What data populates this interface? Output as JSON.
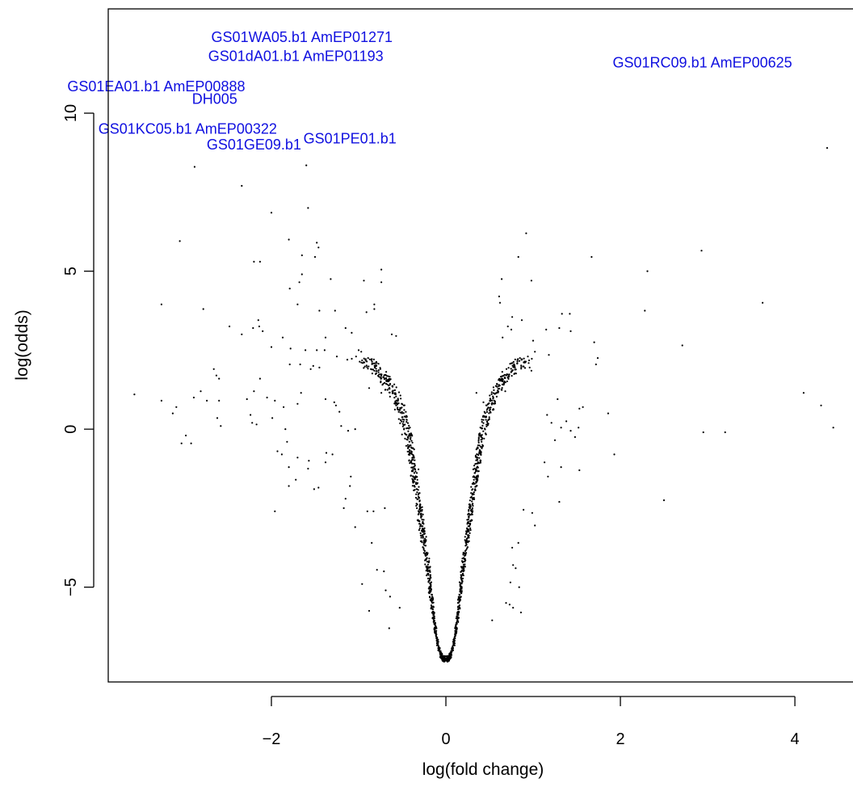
{
  "chart_data": {
    "type": "scatter",
    "title": "",
    "xlabel": "log(fold change)",
    "ylabel": "log(odds)",
    "xlim": [
      -3.87,
      4.74
    ],
    "ylim": [
      -8.0,
      13.3
    ],
    "x_ticks": [
      -2,
      0,
      2,
      4
    ],
    "y_ticks": [
      -5,
      0,
      5,
      10
    ],
    "x_tick_labels": [
      "−2",
      "0",
      "2",
      "4"
    ],
    "y_tick_labels": [
      "−5",
      "0",
      "5",
      "10"
    ],
    "grid": false,
    "point_color": "#000000",
    "label_color": "#1010e0",
    "labeled_genes": [
      {
        "label": "GS01WA05.b1 AmEP01271",
        "x": -1.65,
        "y": 12.4
      },
      {
        "label": "GS01dA01.b1 AmEP01193",
        "x": -1.72,
        "y": 11.8
      },
      {
        "label": "GS01RC09.b1 AmEP00625",
        "x": 2.94,
        "y": 11.6
      },
      {
        "label": "GS01EA01.b1 AmEP00888",
        "x": -3.32,
        "y": 10.85
      },
      {
        "label": "DH005",
        "x": -2.65,
        "y": 10.45
      },
      {
        "label": "GS01KC05.b1 AmEP00322",
        "x": -2.96,
        "y": 9.5
      },
      {
        "label": "GS01PE01.b1",
        "x": -1.1,
        "y": 9.2
      },
      {
        "label": "GS01GE09.b1",
        "x": -2.2,
        "y": 9.0
      }
    ],
    "points": [
      [
        4.37,
        8.9
      ],
      [
        -2.88,
        8.3
      ],
      [
        -1.6,
        8.35
      ],
      [
        -2.34,
        7.7
      ],
      [
        -1.58,
        7.0
      ],
      [
        -2.0,
        6.85
      ],
      [
        0.92,
        6.2
      ],
      [
        -3.05,
        5.95
      ],
      [
        -1.8,
        6.0
      ],
      [
        -1.48,
        5.9
      ],
      [
        -1.46,
        5.75
      ],
      [
        2.93,
        5.65
      ],
      [
        -1.65,
        5.5
      ],
      [
        0.83,
        5.45
      ],
      [
        1.67,
        5.45
      ],
      [
        -2.2,
        5.3
      ],
      [
        -2.13,
        5.3
      ],
      [
        -1.5,
        5.45
      ],
      [
        -1.65,
        4.9
      ],
      [
        -0.74,
        5.05
      ],
      [
        2.31,
        5.0
      ],
      [
        -1.32,
        4.75
      ],
      [
        -0.94,
        4.7
      ],
      [
        -0.74,
        4.65
      ],
      [
        0.64,
        4.75
      ],
      [
        0.98,
        4.7
      ],
      [
        -1.68,
        4.65
      ],
      [
        -1.79,
        4.45
      ],
      [
        0.61,
        4.2
      ],
      [
        0.62,
        4.0
      ],
      [
        -3.26,
        3.95
      ],
      [
        -1.7,
        3.95
      ],
      [
        3.63,
        4.0
      ],
      [
        -0.82,
        3.8
      ],
      [
        -0.82,
        3.95
      ],
      [
        -2.78,
        3.8
      ],
      [
        -1.45,
        3.75
      ],
      [
        -1.27,
        3.75
      ],
      [
        -0.91,
        3.7
      ],
      [
        2.28,
        3.75
      ],
      [
        1.33,
        3.65
      ],
      [
        1.42,
        3.65
      ],
      [
        0.76,
        3.55
      ],
      [
        0.87,
        3.45
      ],
      [
        -2.15,
        3.45
      ],
      [
        -2.48,
        3.25
      ],
      [
        -2.21,
        3.2
      ],
      [
        -2.14,
        3.25
      ],
      [
        -2.34,
        3.0
      ],
      [
        -2.1,
        3.1
      ],
      [
        -1.87,
        2.9
      ],
      [
        -1.38,
        2.9
      ],
      [
        -1.15,
        3.2
      ],
      [
        1.3,
        3.2
      ],
      [
        -1.08,
        3.05
      ],
      [
        1.43,
        3.1
      ],
      [
        0.71,
        3.25
      ],
      [
        0.75,
        3.15
      ],
      [
        1.15,
        3.15
      ],
      [
        0.65,
        2.9
      ],
      [
        -0.62,
        3.0
      ],
      [
        -0.57,
        2.95
      ],
      [
        1.0,
        2.8
      ],
      [
        1.7,
        2.75
      ],
      [
        2.71,
        2.65
      ],
      [
        -2.0,
        2.6
      ],
      [
        -1.78,
        2.55
      ],
      [
        -1.61,
        2.5
      ],
      [
        -1.48,
        2.5
      ],
      [
        -1.39,
        2.5
      ],
      [
        -1.25,
        2.3
      ],
      [
        -1.0,
        2.5
      ],
      [
        -0.97,
        2.45
      ],
      [
        -1.03,
        2.3
      ],
      [
        -1.13,
        2.2
      ],
      [
        1.02,
        2.45
      ],
      [
        1.18,
        2.35
      ],
      [
        0.94,
        2.3
      ],
      [
        1.74,
        2.25
      ],
      [
        -2.66,
        1.9
      ],
      [
        -2.63,
        1.7
      ],
      [
        -2.6,
        1.6
      ],
      [
        -1.79,
        2.05
      ],
      [
        -1.67,
        2.05
      ],
      [
        -1.55,
        1.9
      ],
      [
        -1.52,
        2.0
      ],
      [
        -1.45,
        1.95
      ],
      [
        -0.86,
        1.9
      ],
      [
        -0.82,
        1.85
      ],
      [
        0.96,
        1.95
      ],
      [
        0.98,
        1.85
      ],
      [
        1.72,
        2.05
      ],
      [
        -3.57,
        1.1
      ],
      [
        -3.26,
        0.9
      ],
      [
        -2.81,
        1.2
      ],
      [
        -2.89,
        1.0
      ],
      [
        -2.74,
        0.9
      ],
      [
        -2.6,
        0.9
      ],
      [
        -2.13,
        1.6
      ],
      [
        -2.05,
        1.0
      ],
      [
        -2.2,
        1.2
      ],
      [
        -2.28,
        0.95
      ],
      [
        -1.96,
        0.9
      ],
      [
        -1.86,
        0.7
      ],
      [
        -1.7,
        0.8
      ],
      [
        -1.66,
        1.15
      ],
      [
        -1.38,
        0.95
      ],
      [
        -1.28,
        0.85
      ],
      [
        -1.26,
        0.75
      ],
      [
        -1.22,
        0.55
      ],
      [
        -0.88,
        1.3
      ],
      [
        -0.74,
        1.15
      ],
      [
        -0.61,
        1.15
      ],
      [
        -0.58,
        0.85
      ],
      [
        -0.57,
        0.75
      ],
      [
        0.35,
        1.15
      ],
      [
        0.43,
        0.85
      ],
      [
        0.68,
        1.2
      ],
      [
        1.28,
        0.95
      ],
      [
        1.53,
        0.65
      ],
      [
        1.57,
        0.7
      ],
      [
        1.86,
        0.5
      ],
      [
        4.1,
        1.15
      ],
      [
        4.3,
        0.75
      ],
      [
        -3.09,
        0.7
      ],
      [
        -3.13,
        0.5
      ],
      [
        -2.62,
        0.35
      ],
      [
        -2.58,
        0.1
      ],
      [
        -2.24,
        0.45
      ],
      [
        -2.22,
        0.2
      ],
      [
        -2.17,
        0.15
      ],
      [
        -1.99,
        0.35
      ],
      [
        -1.84,
        0.0
      ],
      [
        -1.2,
        0.1
      ],
      [
        -1.12,
        -0.05
      ],
      [
        -1.04,
        0.0
      ],
      [
        1.16,
        0.45
      ],
      [
        1.38,
        0.25
      ],
      [
        1.21,
        0.2
      ],
      [
        1.32,
        0.05
      ],
      [
        1.43,
        -0.05
      ],
      [
        1.52,
        0.05
      ],
      [
        1.48,
        -0.25
      ],
      [
        1.25,
        -0.35
      ],
      [
        4.44,
        0.05
      ],
      [
        -2.98,
        -0.2
      ],
      [
        -2.92,
        -0.45
      ],
      [
        -1.82,
        -0.4
      ],
      [
        2.95,
        -0.1
      ],
      [
        3.2,
        -0.1
      ],
      [
        -3.03,
        -0.45
      ],
      [
        -1.93,
        -0.7
      ],
      [
        -1.88,
        -0.8
      ],
      [
        -1.7,
        -0.9
      ],
      [
        -1.57,
        -1.0
      ],
      [
        -1.37,
        -0.75
      ],
      [
        -1.3,
        -0.8
      ],
      [
        -1.38,
        -1.05
      ],
      [
        -1.58,
        -1.25
      ],
      [
        1.93,
        -0.8
      ],
      [
        -1.8,
        -1.2
      ],
      [
        -1.72,
        -1.6
      ],
      [
        -1.8,
        -1.8
      ],
      [
        -1.46,
        -1.85
      ],
      [
        -1.51,
        -1.9
      ],
      [
        -1.09,
        -1.5
      ],
      [
        -1.1,
        -1.8
      ],
      [
        1.13,
        -1.05
      ],
      [
        1.17,
        -1.5
      ],
      [
        1.32,
        -1.2
      ],
      [
        1.53,
        -1.3
      ],
      [
        1.3,
        -2.3
      ],
      [
        2.5,
        -2.25
      ],
      [
        -1.96,
        -2.6
      ],
      [
        -1.17,
        -2.5
      ],
      [
        -1.15,
        -2.2
      ],
      [
        -0.9,
        -2.6
      ],
      [
        -0.83,
        -2.6
      ],
      [
        -0.7,
        -2.5
      ],
      [
        0.89,
        -2.55
      ],
      [
        0.99,
        -2.65
      ],
      [
        -1.04,
        -3.1
      ],
      [
        -0.85,
        -3.6
      ],
      [
        0.83,
        -3.6
      ],
      [
        1.02,
        -3.05
      ],
      [
        0.76,
        -3.75
      ],
      [
        -0.79,
        -4.45
      ],
      [
        0.77,
        -4.3
      ],
      [
        -0.96,
        -4.9
      ],
      [
        -0.71,
        -4.5
      ],
      [
        0.8,
        -4.4
      ],
      [
        0.74,
        -4.85
      ],
      [
        -0.69,
        -5.1
      ],
      [
        0.84,
        -5.0
      ],
      [
        -0.64,
        -5.3
      ],
      [
        0.69,
        -5.5
      ],
      [
        -0.88,
        -5.75
      ],
      [
        0.86,
        -5.8
      ],
      [
        0.77,
        -5.65
      ],
      [
        0.73,
        -5.55
      ],
      [
        -0.53,
        -5.65
      ],
      [
        -0.65,
        -6.3
      ],
      [
        0.53,
        -6.05
      ]
    ],
    "volcano_envelope": [
      [
        0.0,
        -7.28
      ],
      [
        0.02,
        -7.26
      ],
      [
        0.04,
        -7.22
      ],
      [
        0.06,
        -7.12
      ],
      [
        0.08,
        -6.95
      ],
      [
        0.1,
        -6.7
      ],
      [
        0.12,
        -6.3
      ],
      [
        0.14,
        -5.9
      ],
      [
        0.16,
        -5.4
      ],
      [
        0.18,
        -4.9
      ],
      [
        0.2,
        -4.4
      ],
      [
        0.23,
        -3.8
      ],
      [
        0.26,
        -3.2
      ],
      [
        0.29,
        -2.6
      ],
      [
        0.32,
        -2.0
      ],
      [
        0.35,
        -1.4
      ],
      [
        0.38,
        -0.9
      ],
      [
        0.41,
        -0.4
      ],
      [
        0.44,
        0.0
      ],
      [
        0.48,
        0.4
      ],
      [
        0.52,
        0.75
      ],
      [
        0.56,
        1.05
      ],
      [
        0.6,
        1.3
      ],
      [
        0.65,
        1.5
      ],
      [
        0.7,
        1.7
      ],
      [
        0.78,
        1.9
      ],
      [
        0.86,
        2.05
      ],
      [
        0.95,
        2.2
      ]
    ]
  }
}
